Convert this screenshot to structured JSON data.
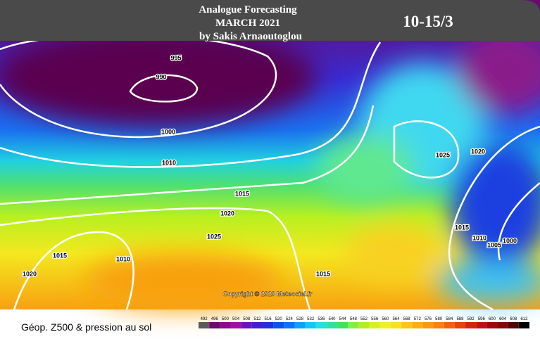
{
  "header": {
    "title_lines": [
      "Analogue Forecasting",
      "MARCH 2021",
      "by Sakis Arnaoutoglou"
    ],
    "period": "10-15/3"
  },
  "map": {
    "isobar_labels": [
      "995",
      "990",
      "1000",
      "1010",
      "1015",
      "1020",
      "1025",
      "1015",
      "1010",
      "1020",
      "1015",
      "1025",
      "1020",
      "1015",
      "1010",
      "1005",
      "1000"
    ],
    "copyright": "Copyright © 2020 Meteociel.fr"
  },
  "legend": {
    "title": "Géop. Z500 & pression au sol",
    "scale_labels": [
      492,
      496,
      500,
      504,
      508,
      512,
      516,
      520,
      524,
      528,
      532,
      536,
      540,
      544,
      548,
      552,
      556,
      560,
      564,
      568,
      572,
      576,
      580,
      584,
      588,
      592,
      596,
      600,
      604,
      608,
      612
    ]
  }
}
